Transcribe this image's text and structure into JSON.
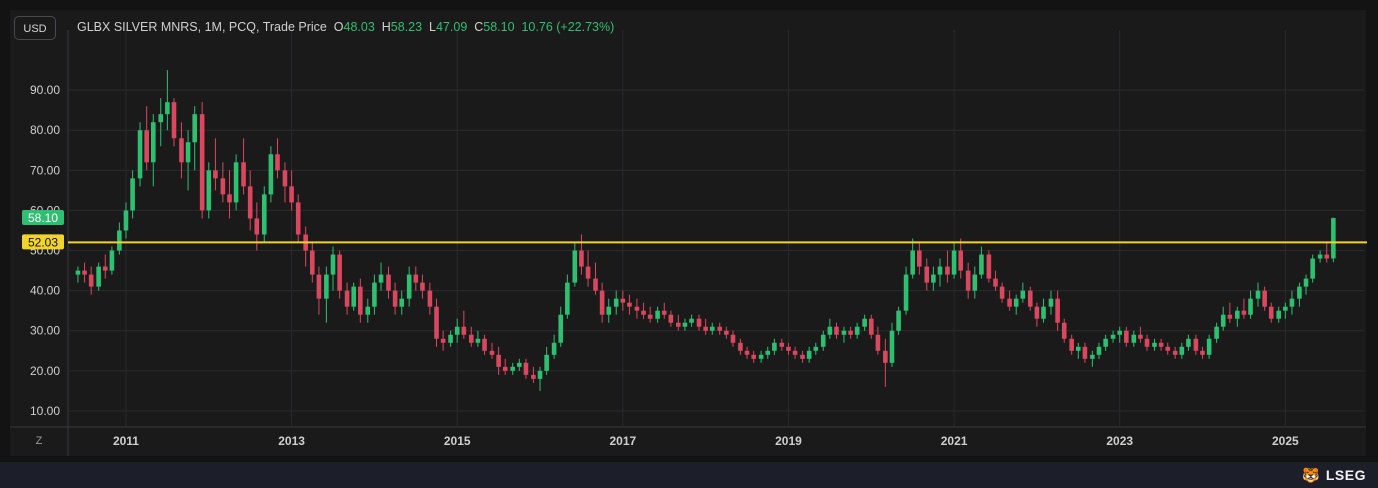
{
  "header": {
    "currency_button": "USD",
    "instrument": "GLBX SILVER MNRS, 1M, PCQ, Trade Price",
    "o_key": "O",
    "o_val": "48.03",
    "h_key": "H",
    "h_val": "58.23",
    "l_key": "L",
    "l_val": "47.09",
    "c_key": "C",
    "c_val": "58.10",
    "change": "10.76 (+22.73%)"
  },
  "footer": {
    "zoom_button": "Z",
    "brand": "LSEG",
    "brand_icon": "lseg-logo-icon"
  },
  "colors": {
    "up": "#2fbf71",
    "down": "#d9485f",
    "hline": "#f2d22e",
    "grid": "#2a2a2c",
    "text": "#cfcfcf"
  },
  "chart_data": {
    "type": "candlestick",
    "interval": "monthly",
    "y_ticks": [
      "10.00",
      "20.00",
      "30.00",
      "40.00",
      "50.00",
      "60.00",
      "70.00",
      "80.00",
      "90.00"
    ],
    "ylim": [
      6,
      100
    ],
    "xlim": [
      2010.3,
      2025.95
    ],
    "x_ticks": [
      "2011",
      "2013",
      "2015",
      "2017",
      "2019",
      "2021",
      "2023",
      "2025"
    ],
    "last_price_label": "58.10",
    "last_price": 58.1,
    "horizontal_line": {
      "value": 52.03,
      "label": "52.03"
    },
    "candles": [
      [
        2010.42,
        44,
        46,
        42,
        45
      ],
      [
        2010.5,
        45,
        47,
        42,
        44
      ],
      [
        2010.58,
        44,
        46,
        39,
        41
      ],
      [
        2010.67,
        41,
        47,
        40,
        46
      ],
      [
        2010.75,
        46,
        49,
        43,
        45
      ],
      [
        2010.83,
        45,
        51,
        44,
        50
      ],
      [
        2010.92,
        50,
        57,
        49,
        55
      ],
      [
        2011.0,
        55,
        62,
        53,
        60
      ],
      [
        2011.08,
        60,
        70,
        58,
        68
      ],
      [
        2011.17,
        68,
        82,
        66,
        80
      ],
      [
        2011.25,
        80,
        86,
        70,
        72
      ],
      [
        2011.33,
        72,
        84,
        66,
        82
      ],
      [
        2011.42,
        82,
        88,
        76,
        84
      ],
      [
        2011.5,
        84,
        95,
        80,
        87
      ],
      [
        2011.58,
        87,
        88,
        76,
        78
      ],
      [
        2011.67,
        78,
        82,
        68,
        72
      ],
      [
        2011.75,
        72,
        80,
        65,
        77
      ],
      [
        2011.83,
        77,
        86,
        70,
        84
      ],
      [
        2011.92,
        84,
        87,
        58,
        60
      ],
      [
        2012.0,
        60,
        72,
        58,
        70
      ],
      [
        2012.08,
        70,
        78,
        65,
        68
      ],
      [
        2012.17,
        68,
        72,
        62,
        64
      ],
      [
        2012.25,
        64,
        70,
        58,
        62
      ],
      [
        2012.33,
        62,
        74,
        60,
        72
      ],
      [
        2012.42,
        72,
        78,
        64,
        66
      ],
      [
        2012.5,
        66,
        70,
        55,
        58
      ],
      [
        2012.58,
        58,
        62,
        50,
        54
      ],
      [
        2012.67,
        54,
        66,
        52,
        64
      ],
      [
        2012.75,
        64,
        76,
        62,
        74
      ],
      [
        2012.83,
        74,
        78,
        68,
        70
      ],
      [
        2012.92,
        70,
        72,
        62,
        66
      ],
      [
        2013.0,
        66,
        70,
        60,
        62
      ],
      [
        2013.08,
        62,
        64,
        52,
        54
      ],
      [
        2013.17,
        54,
        56,
        46,
        50
      ],
      [
        2013.25,
        50,
        52,
        42,
        44
      ],
      [
        2013.33,
        44,
        46,
        34,
        38
      ],
      [
        2013.42,
        38,
        46,
        32,
        44
      ],
      [
        2013.5,
        44,
        51,
        40,
        49
      ],
      [
        2013.58,
        49,
        50,
        38,
        40
      ],
      [
        2013.67,
        40,
        42,
        34,
        36
      ],
      [
        2013.75,
        36,
        42,
        35,
        41
      ],
      [
        2013.83,
        41,
        43,
        32,
        34
      ],
      [
        2013.92,
        34,
        38,
        32,
        36
      ],
      [
        2014.0,
        36,
        44,
        34,
        42
      ],
      [
        2014.08,
        42,
        47,
        40,
        44
      ],
      [
        2014.17,
        44,
        46,
        38,
        40
      ],
      [
        2014.25,
        40,
        42,
        34,
        36
      ],
      [
        2014.33,
        36,
        40,
        34,
        38
      ],
      [
        2014.42,
        38,
        46,
        36,
        44
      ],
      [
        2014.5,
        44,
        46,
        40,
        42
      ],
      [
        2014.58,
        42,
        44,
        38,
        40
      ],
      [
        2014.67,
        40,
        42,
        34,
        36
      ],
      [
        2014.75,
        36,
        38,
        26,
        28
      ],
      [
        2014.83,
        28,
        30,
        25,
        27
      ],
      [
        2014.92,
        27,
        30,
        26,
        29
      ],
      [
        2015.0,
        29,
        33,
        27,
        31
      ],
      [
        2015.08,
        31,
        35,
        28,
        29
      ],
      [
        2015.17,
        29,
        31,
        26,
        27
      ],
      [
        2015.25,
        27,
        30,
        26,
        28
      ],
      [
        2015.33,
        28,
        29,
        24,
        25
      ],
      [
        2015.42,
        25,
        27,
        23,
        24
      ],
      [
        2015.5,
        24,
        26,
        19,
        21
      ],
      [
        2015.58,
        21,
        23,
        19,
        20
      ],
      [
        2015.67,
        20,
        22,
        19,
        21
      ],
      [
        2015.75,
        21,
        23,
        20,
        22
      ],
      [
        2015.83,
        22,
        23,
        18,
        19
      ],
      [
        2015.92,
        19,
        21,
        17,
        18
      ],
      [
        2016.0,
        18,
        21,
        15,
        20
      ],
      [
        2016.08,
        20,
        26,
        19,
        24
      ],
      [
        2016.17,
        24,
        29,
        23,
        27
      ],
      [
        2016.25,
        27,
        36,
        26,
        34
      ],
      [
        2016.33,
        34,
        44,
        33,
        42
      ],
      [
        2016.42,
        42,
        52,
        41,
        50
      ],
      [
        2016.5,
        50,
        54,
        44,
        46
      ],
      [
        2016.58,
        46,
        50,
        41,
        43
      ],
      [
        2016.67,
        43,
        47,
        39,
        40
      ],
      [
        2016.75,
        40,
        42,
        32,
        34
      ],
      [
        2016.83,
        34,
        38,
        32,
        36
      ],
      [
        2016.92,
        36,
        40,
        34,
        38
      ],
      [
        2017.0,
        38,
        40,
        35,
        37
      ],
      [
        2017.08,
        37,
        39,
        34,
        36
      ],
      [
        2017.17,
        36,
        38,
        33,
        35
      ],
      [
        2017.25,
        35,
        37,
        33,
        34
      ],
      [
        2017.33,
        34,
        36,
        32,
        33
      ],
      [
        2017.42,
        33,
        36,
        32,
        35
      ],
      [
        2017.5,
        35,
        37,
        33,
        34
      ],
      [
        2017.58,
        34,
        35,
        31,
        32
      ],
      [
        2017.67,
        32,
        34,
        30,
        31
      ],
      [
        2017.75,
        31,
        33,
        30,
        32
      ],
      [
        2017.83,
        32,
        34,
        31,
        33
      ],
      [
        2017.92,
        33,
        34,
        30,
        31
      ],
      [
        2018.0,
        31,
        33,
        29,
        30
      ],
      [
        2018.08,
        30,
        32,
        29,
        31
      ],
      [
        2018.17,
        31,
        32,
        29,
        30
      ],
      [
        2018.25,
        30,
        31,
        28,
        29
      ],
      [
        2018.33,
        29,
        30,
        26,
        27
      ],
      [
        2018.42,
        27,
        28,
        24,
        25
      ],
      [
        2018.5,
        25,
        26,
        23,
        24
      ],
      [
        2018.58,
        24,
        25,
        22,
        23
      ],
      [
        2018.67,
        23,
        25,
        22,
        24
      ],
      [
        2018.75,
        24,
        26,
        23,
        25
      ],
      [
        2018.83,
        25,
        28,
        24,
        27
      ],
      [
        2018.92,
        27,
        28,
        25,
        26
      ],
      [
        2019.0,
        26,
        27,
        24,
        25
      ],
      [
        2019.08,
        25,
        26,
        23,
        24
      ],
      [
        2019.17,
        24,
        25,
        22,
        23
      ],
      [
        2019.25,
        23,
        26,
        22,
        25
      ],
      [
        2019.33,
        25,
        27,
        24,
        26
      ],
      [
        2019.42,
        26,
        30,
        25,
        29
      ],
      [
        2019.5,
        29,
        33,
        28,
        31
      ],
      [
        2019.58,
        31,
        32,
        28,
        29
      ],
      [
        2019.67,
        29,
        31,
        27,
        30
      ],
      [
        2019.75,
        30,
        31,
        28,
        29
      ],
      [
        2019.83,
        29,
        32,
        28,
        31
      ],
      [
        2019.92,
        31,
        34,
        30,
        33
      ],
      [
        2020.0,
        33,
        34,
        28,
        29
      ],
      [
        2020.08,
        29,
        31,
        24,
        25
      ],
      [
        2020.17,
        25,
        28,
        16,
        22
      ],
      [
        2020.25,
        22,
        32,
        21,
        30
      ],
      [
        2020.33,
        30,
        36,
        29,
        35
      ],
      [
        2020.42,
        35,
        46,
        34,
        44
      ],
      [
        2020.5,
        44,
        53,
        43,
        50
      ],
      [
        2020.58,
        50,
        52,
        44,
        46
      ],
      [
        2020.67,
        46,
        48,
        40,
        42
      ],
      [
        2020.75,
        42,
        46,
        40,
        44
      ],
      [
        2020.83,
        44,
        48,
        41,
        46
      ],
      [
        2020.92,
        46,
        50,
        42,
        44
      ],
      [
        2021.0,
        44,
        52,
        43,
        50
      ],
      [
        2021.08,
        50,
        53,
        43,
        45
      ],
      [
        2021.17,
        45,
        47,
        38,
        40
      ],
      [
        2021.25,
        40,
        46,
        38,
        44
      ],
      [
        2021.33,
        44,
        51,
        43,
        49
      ],
      [
        2021.42,
        49,
        50,
        42,
        43
      ],
      [
        2021.5,
        43,
        45,
        40,
        41
      ],
      [
        2021.58,
        41,
        42,
        37,
        38
      ],
      [
        2021.67,
        38,
        40,
        35,
        36
      ],
      [
        2021.75,
        36,
        39,
        34,
        38
      ],
      [
        2021.83,
        38,
        42,
        37,
        40
      ],
      [
        2021.92,
        40,
        41,
        35,
        36
      ],
      [
        2022.0,
        36,
        37,
        31,
        33
      ],
      [
        2022.08,
        33,
        38,
        32,
        36
      ],
      [
        2022.17,
        36,
        40,
        34,
        38
      ],
      [
        2022.25,
        38,
        40,
        30,
        32
      ],
      [
        2022.33,
        32,
        33,
        27,
        28
      ],
      [
        2022.42,
        28,
        29,
        24,
        25
      ],
      [
        2022.5,
        25,
        27,
        23,
        26
      ],
      [
        2022.58,
        26,
        27,
        22,
        23
      ],
      [
        2022.67,
        23,
        25,
        21,
        24
      ],
      [
        2022.75,
        24,
        27,
        23,
        26
      ],
      [
        2022.83,
        26,
        29,
        25,
        28
      ],
      [
        2022.92,
        28,
        30,
        27,
        29
      ],
      [
        2023.0,
        29,
        31,
        27,
        30
      ],
      [
        2023.08,
        30,
        31,
        26,
        27
      ],
      [
        2023.17,
        27,
        30,
        26,
        29
      ],
      [
        2023.25,
        29,
        31,
        27,
        28
      ],
      [
        2023.33,
        28,
        29,
        25,
        26
      ],
      [
        2023.42,
        26,
        28,
        25,
        27
      ],
      [
        2023.5,
        27,
        28,
        25,
        26
      ],
      [
        2023.58,
        26,
        27,
        24,
        25
      ],
      [
        2023.67,
        25,
        26,
        23,
        24
      ],
      [
        2023.75,
        24,
        27,
        23,
        26
      ],
      [
        2023.83,
        26,
        29,
        25,
        28
      ],
      [
        2023.92,
        28,
        29,
        24,
        25
      ],
      [
        2024.0,
        25,
        26,
        23,
        24
      ],
      [
        2024.08,
        24,
        29,
        23,
        28
      ],
      [
        2024.17,
        28,
        32,
        27,
        31
      ],
      [
        2024.25,
        31,
        36,
        30,
        34
      ],
      [
        2024.33,
        34,
        37,
        32,
        33
      ],
      [
        2024.42,
        33,
        36,
        31,
        35
      ],
      [
        2024.5,
        35,
        38,
        33,
        34
      ],
      [
        2024.58,
        34,
        40,
        33,
        38
      ],
      [
        2024.67,
        38,
        42,
        36,
        40
      ],
      [
        2024.75,
        40,
        41,
        35,
        36
      ],
      [
        2024.83,
        36,
        37,
        32,
        33
      ],
      [
        2024.92,
        33,
        36,
        32,
        35
      ],
      [
        2025.0,
        35,
        37,
        33,
        36
      ],
      [
        2025.08,
        36,
        40,
        34,
        38
      ],
      [
        2025.17,
        38,
        42,
        36,
        41
      ],
      [
        2025.25,
        41,
        44,
        39,
        43
      ],
      [
        2025.33,
        43,
        49,
        42,
        48
      ],
      [
        2025.42,
        48,
        50,
        47,
        49
      ],
      [
        2025.5,
        49,
        52,
        47,
        48
      ],
      [
        2025.58,
        48.03,
        58.23,
        47.09,
        58.1
      ]
    ]
  }
}
